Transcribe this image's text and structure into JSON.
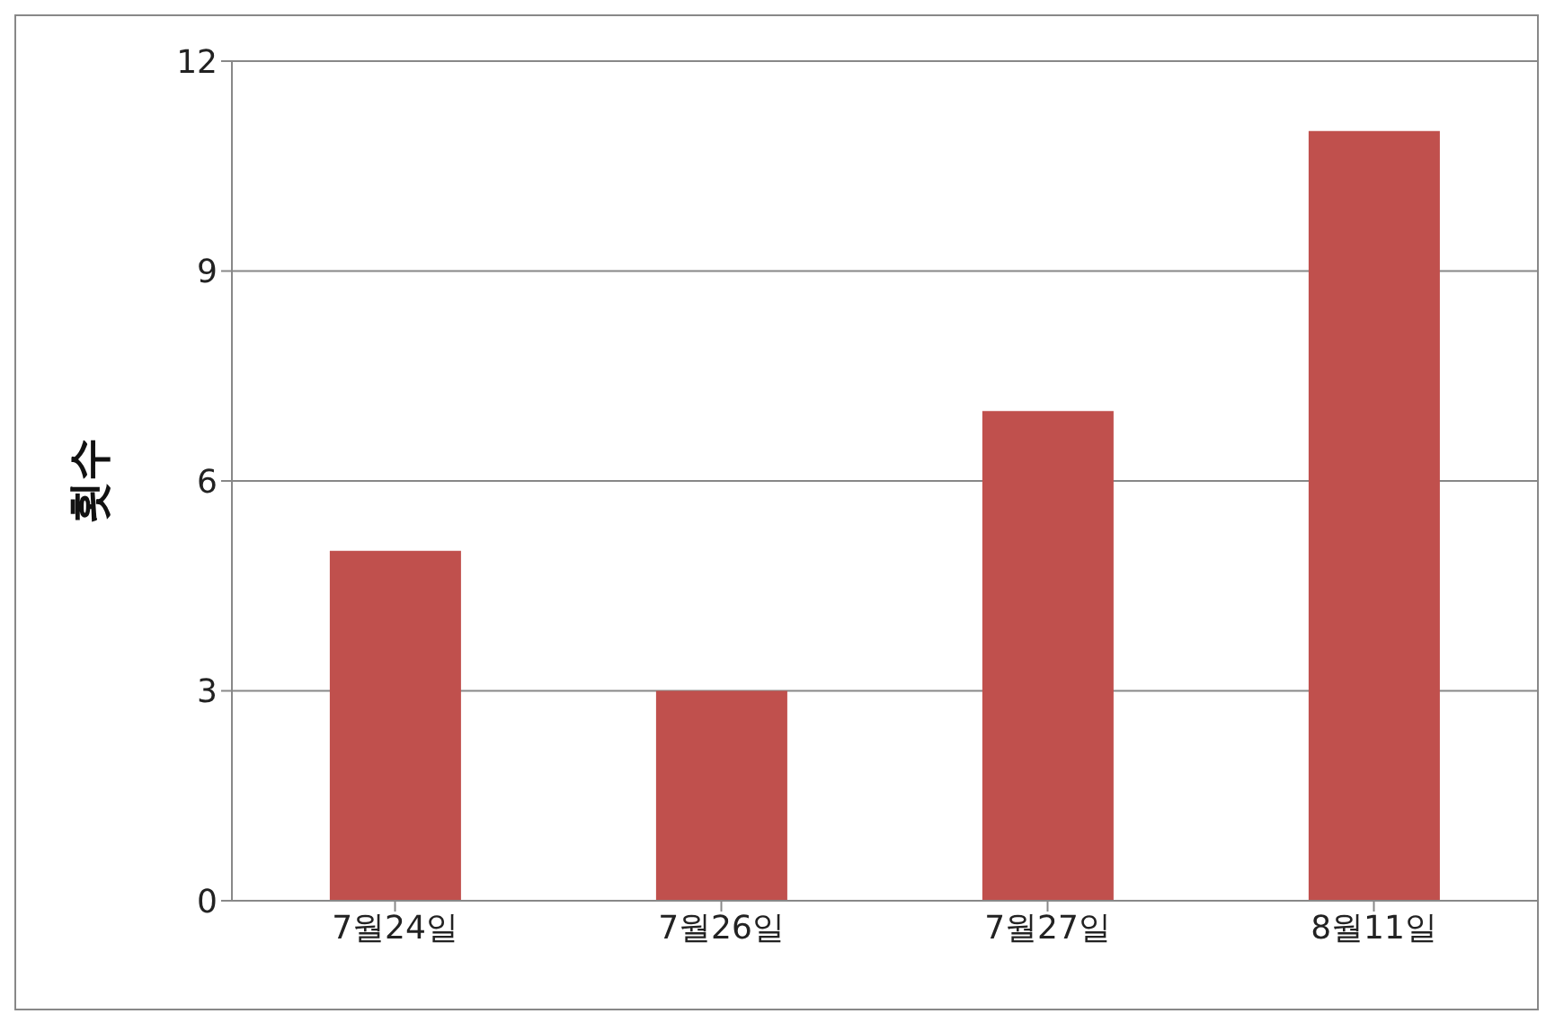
{
  "chart_data": {
    "type": "bar",
    "ylabel": "횟수",
    "categories": [
      "7월24일",
      "7월26일",
      "7월27일",
      "8월11일"
    ],
    "values": [
      5,
      3,
      7,
      11
    ],
    "color": "#c0504d",
    "ylim": [
      0,
      12
    ],
    "yticks": [
      0,
      3,
      6,
      9,
      12
    ],
    "grid": "y"
  }
}
